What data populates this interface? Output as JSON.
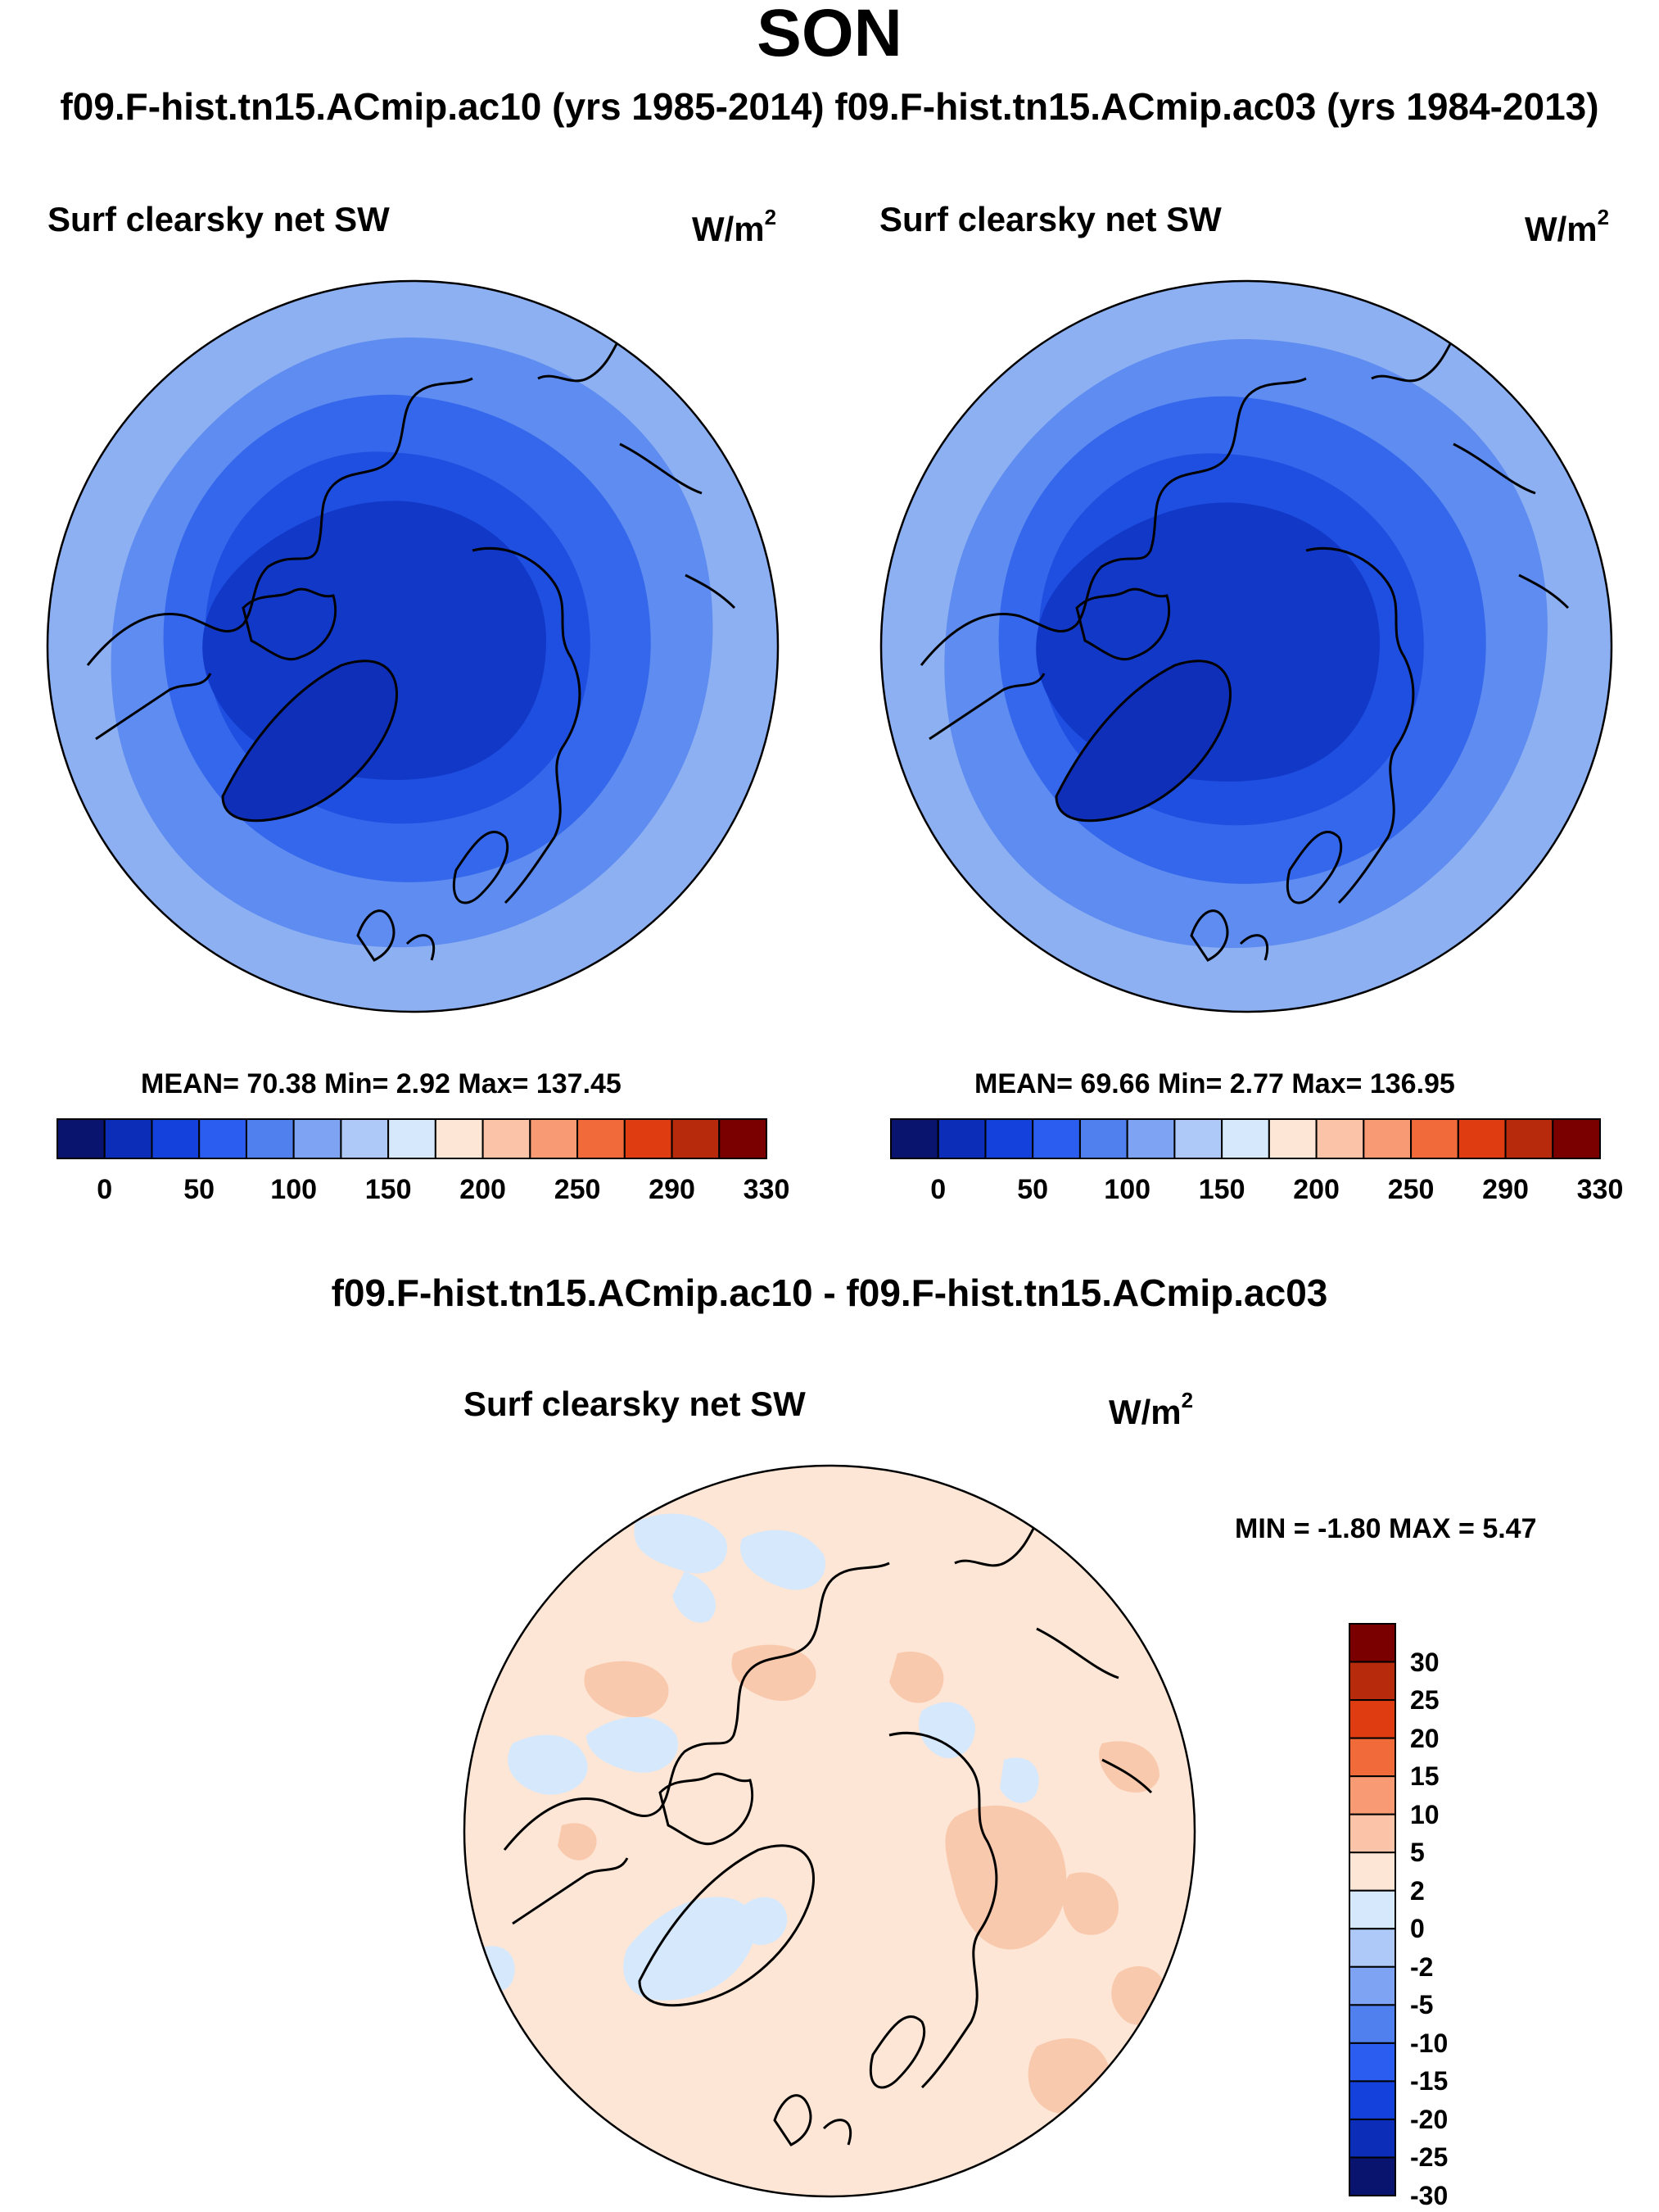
{
  "header": {
    "season": "SON",
    "subtitle": "f09.F-hist.tn15.ACmip.ac10 (yrs 1985-2014) f09.F-hist.tn15.ACmip.ac03 (yrs 1984-2013)"
  },
  "panel_left": {
    "title": "Surf clearsky net SW",
    "units_base": "W/m",
    "units_exp": "2",
    "stats": "MEAN=  70.38  Min=    2.92  Max= 137.45"
  },
  "panel_right": {
    "title": "Surf clearsky net SW",
    "units_base": "W/m",
    "units_exp": "2",
    "stats": "MEAN=  69.66  Min=    2.77  Max= 136.95"
  },
  "abs_colorbar": {
    "ticks": [
      "0",
      "50",
      "100",
      "150",
      "200",
      "250",
      "290",
      "330"
    ],
    "colors": [
      "#08146e",
      "#0b2db8",
      "#1441dc",
      "#2b5ef0",
      "#5080ee",
      "#7da3f2",
      "#aec9f8",
      "#d6e8fb",
      "#fde6d6",
      "#fbc4a8",
      "#f89a74",
      "#f06a3a",
      "#e03c12",
      "#b82a0c",
      "#7a0000"
    ]
  },
  "diff": {
    "title": "f09.F-hist.tn15.ACmip.ac10 - f09.F-hist.tn15.ACmip.ac03",
    "panel_title": "Surf clearsky net SW",
    "units_base": "W/m",
    "units_exp": "2",
    "minmax": "MIN =  -1.80 MAX =    5.47",
    "colorbar_ticks": [
      "30",
      "25",
      "20",
      "15",
      "10",
      "5",
      "2",
      "0",
      "-2",
      "-5",
      "-10",
      "-15",
      "-20",
      "-25",
      "-30"
    ],
    "colorbar_colors": [
      "#7a0000",
      "#b82a0c",
      "#e03c12",
      "#f06a3a",
      "#f89a74",
      "#fbc4a8",
      "#fde6d6",
      "#d6e8fb",
      "#aec9f8",
      "#7da3f2",
      "#5080ee",
      "#2b5ef0",
      "#1441dc",
      "#0b2db8",
      "#08146e"
    ]
  },
  "colors": {
    "ring1": "#8db0f2",
    "ring2": "#5e8cf0",
    "ring3": "#3567ec",
    "ring4": "#1f4fe0",
    "ring5": "#1238c8",
    "diff_bg": "#fde6d6",
    "diff_pos": "#f9c9ad",
    "diff_neg": "#d6e8fb"
  }
}
